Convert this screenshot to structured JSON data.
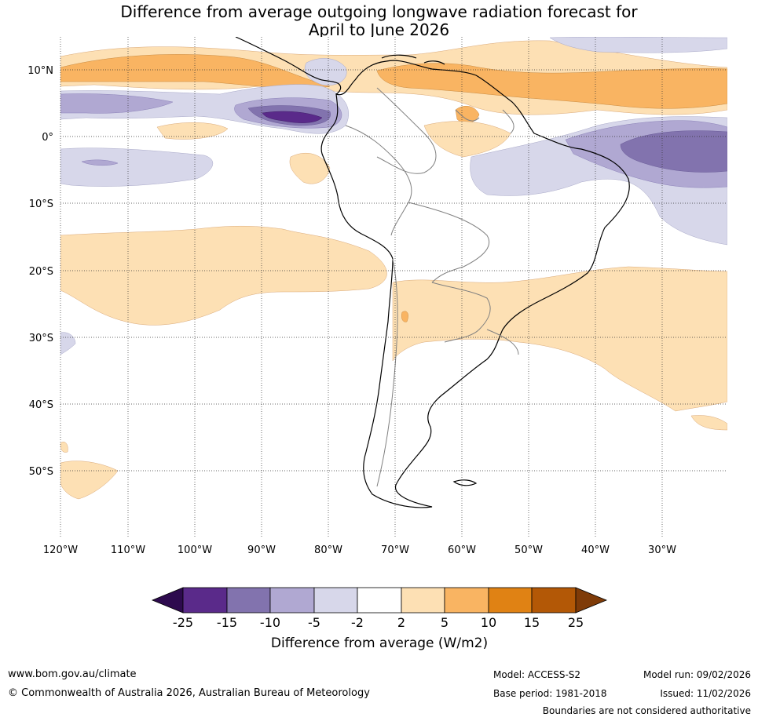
{
  "title": {
    "line1": "Difference from average outgoing longwave radiation forecast for",
    "line2": "April to June 2026"
  },
  "map": {
    "lat_labels": [
      "10°N",
      "0°",
      "10°S",
      "20°S",
      "30°S",
      "40°S",
      "50°S"
    ],
    "lon_labels": [
      "120°W",
      "110°W",
      "100°W",
      "90°W",
      "80°W",
      "70°W",
      "60°W",
      "50°W",
      "40°W",
      "30°W"
    ]
  },
  "legend": {
    "title": "Difference from average (W/m2)",
    "ticks": [
      "-25",
      "-15",
      "-10",
      "-5",
      "-2",
      "2",
      "5",
      "10",
      "15",
      "25"
    ],
    "colors": [
      "#2d0a4e",
      "#5a2a8a",
      "#8273ae",
      "#b0a8d2",
      "#d7d7ea",
      "#ffffff",
      "#fde0b4",
      "#f9b462",
      "#e08214",
      "#b35806",
      "#7f3b08"
    ]
  },
  "footer": {
    "website": "www.bom.gov.au/climate",
    "copyright": "© Commonwealth of Australia 2026, Australian Bureau of Meteorology",
    "model": "Model: ACCESS-S2",
    "base_period": "Base period: 1981-2018",
    "model_run": "Model run: 09/02/2026",
    "issued": "Issued: 11/02/2026",
    "disclaimer": "Boundaries are not considered authoritative"
  }
}
